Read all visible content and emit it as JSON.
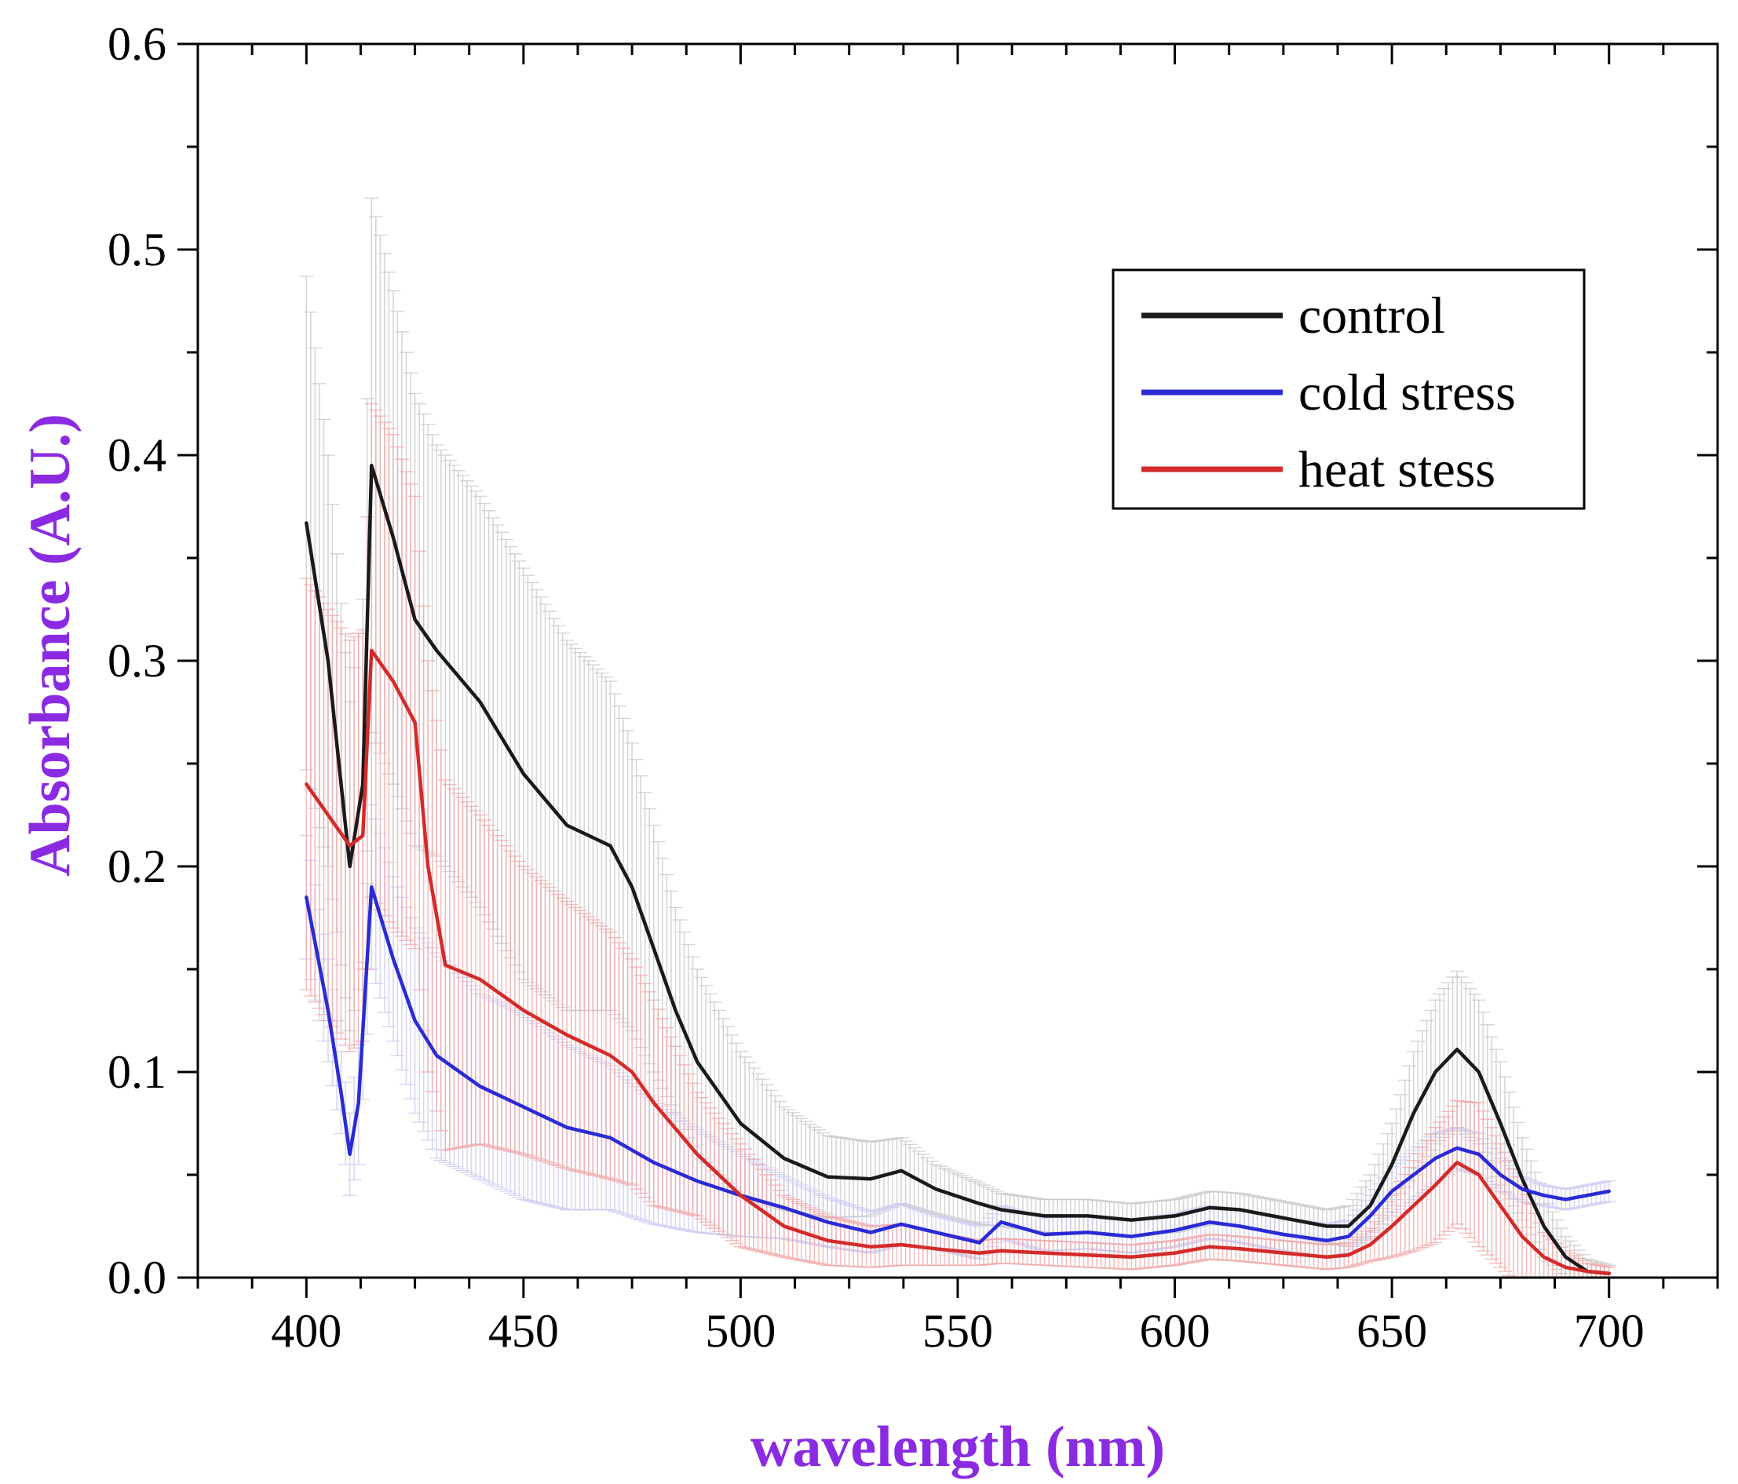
{
  "colors": {
    "axis_title": "#8a2be2",
    "control": "#1a1a1a",
    "cold": "#2a2ad6",
    "heat": "#d42a2a",
    "control_err": "#c8c8c8",
    "cold_err": "#c9c9f0",
    "heat_err": "#f0a8a8"
  },
  "chart_data": {
    "type": "line",
    "title": "",
    "xlabel": "wavelength (nm)",
    "ylabel": "Absorbance (A.U.)",
    "xlim": [
      375,
      725
    ],
    "ylim": [
      0.0,
      0.6
    ],
    "x_ticks": [
      400,
      450,
      500,
      550,
      600,
      650,
      700
    ],
    "x_tick_labels": [
      "400",
      "450",
      "500",
      "550",
      "600",
      "650",
      "700"
    ],
    "y_ticks": [
      0.0,
      0.1,
      0.2,
      0.3,
      0.4,
      0.5,
      0.6
    ],
    "y_tick_labels": [
      "0.0",
      "0.1",
      "0.2",
      "0.3",
      "0.4",
      "0.5",
      "0.6"
    ],
    "legend_position": "top-right",
    "series": [
      {
        "name": "control",
        "x": [
          400,
          405,
          410,
          413,
          415,
          420,
          425,
          430,
          440,
          450,
          460,
          470,
          475,
          480,
          485,
          490,
          500,
          510,
          520,
          530,
          537,
          545,
          555,
          560,
          570,
          580,
          590,
          600,
          608,
          615,
          625,
          635,
          640,
          645,
          650,
          655,
          660,
          665,
          670,
          675,
          680,
          685,
          690,
          695,
          700
        ],
        "y": [
          0.367,
          0.3,
          0.2,
          0.24,
          0.395,
          0.36,
          0.32,
          0.305,
          0.28,
          0.245,
          0.22,
          0.21,
          0.19,
          0.16,
          0.13,
          0.105,
          0.075,
          0.058,
          0.049,
          0.048,
          0.052,
          0.043,
          0.036,
          0.033,
          0.03,
          0.03,
          0.028,
          0.03,
          0.034,
          0.033,
          0.029,
          0.025,
          0.025,
          0.035,
          0.055,
          0.08,
          0.1,
          0.111,
          0.1,
          0.075,
          0.048,
          0.025,
          0.01,
          0.003,
          0.002
        ],
        "error": [
          0.12,
          0.1,
          0.08,
          0.09,
          0.13,
          0.12,
          0.11,
          0.1,
          0.1,
          0.1,
          0.09,
          0.08,
          0.07,
          0.06,
          0.05,
          0.045,
          0.035,
          0.025,
          0.02,
          0.018,
          0.016,
          0.012,
          0.01,
          0.008,
          0.008,
          0.008,
          0.008,
          0.008,
          0.008,
          0.008,
          0.008,
          0.008,
          0.01,
          0.015,
          0.02,
          0.03,
          0.035,
          0.038,
          0.035,
          0.03,
          0.02,
          0.015,
          0.01,
          0.006,
          0.004
        ]
      },
      {
        "name": "cold stress",
        "x": [
          400,
          405,
          408,
          410,
          412,
          415,
          420,
          425,
          430,
          440,
          450,
          460,
          470,
          480,
          490,
          500,
          510,
          520,
          530,
          537,
          545,
          555,
          560,
          570,
          580,
          590,
          600,
          608,
          615,
          625,
          635,
          640,
          645,
          650,
          655,
          660,
          665,
          670,
          675,
          680,
          685,
          690,
          695,
          700
        ],
        "y": [
          0.185,
          0.13,
          0.09,
          0.06,
          0.085,
          0.19,
          0.155,
          0.125,
          0.108,
          0.093,
          0.083,
          0.073,
          0.068,
          0.056,
          0.047,
          0.04,
          0.034,
          0.027,
          0.022,
          0.026,
          0.022,
          0.017,
          0.027,
          0.021,
          0.022,
          0.02,
          0.023,
          0.027,
          0.025,
          0.021,
          0.018,
          0.02,
          0.03,
          0.042,
          0.05,
          0.058,
          0.063,
          0.06,
          0.05,
          0.043,
          0.04,
          0.038,
          0.04,
          0.042
        ],
        "error": [
          0.03,
          0.025,
          0.02,
          0.02,
          0.03,
          0.04,
          0.04,
          0.045,
          0.05,
          0.045,
          0.045,
          0.04,
          0.035,
          0.03,
          0.025,
          0.02,
          0.015,
          0.012,
          0.01,
          0.01,
          0.008,
          0.008,
          0.008,
          0.008,
          0.008,
          0.008,
          0.008,
          0.008,
          0.008,
          0.008,
          0.008,
          0.008,
          0.01,
          0.012,
          0.012,
          0.012,
          0.01,
          0.01,
          0.008,
          0.006,
          0.005,
          0.005,
          0.005,
          0.005
        ]
      },
      {
        "name": "heat stess",
        "x": [
          400,
          405,
          410,
          413,
          415,
          420,
          425,
          428,
          432,
          440,
          450,
          460,
          470,
          475,
          480,
          490,
          500,
          510,
          520,
          530,
          537,
          545,
          555,
          560,
          570,
          580,
          590,
          600,
          608,
          615,
          625,
          635,
          640,
          645,
          650,
          655,
          660,
          665,
          670,
          675,
          680,
          685,
          690,
          695,
          700
        ],
        "y": [
          0.24,
          0.225,
          0.21,
          0.215,
          0.305,
          0.29,
          0.27,
          0.2,
          0.152,
          0.145,
          0.13,
          0.118,
          0.108,
          0.1,
          0.085,
          0.06,
          0.04,
          0.025,
          0.018,
          0.015,
          0.016,
          0.014,
          0.012,
          0.013,
          0.012,
          0.011,
          0.01,
          0.012,
          0.015,
          0.014,
          0.012,
          0.01,
          0.011,
          0.016,
          0.025,
          0.035,
          0.045,
          0.056,
          0.05,
          0.035,
          0.02,
          0.01,
          0.005,
          0.003,
          0.002
        ],
        "error": [
          0.1,
          0.1,
          0.1,
          0.1,
          0.12,
          0.12,
          0.11,
          0.1,
          0.09,
          0.08,
          0.07,
          0.065,
          0.06,
          0.055,
          0.05,
          0.03,
          0.025,
          0.015,
          0.012,
          0.01,
          0.01,
          0.008,
          0.006,
          0.006,
          0.006,
          0.006,
          0.006,
          0.006,
          0.006,
          0.006,
          0.006,
          0.006,
          0.006,
          0.008,
          0.015,
          0.022,
          0.028,
          0.03,
          0.035,
          0.03,
          0.025,
          0.012,
          0.008,
          0.004,
          0.003
        ]
      }
    ]
  }
}
